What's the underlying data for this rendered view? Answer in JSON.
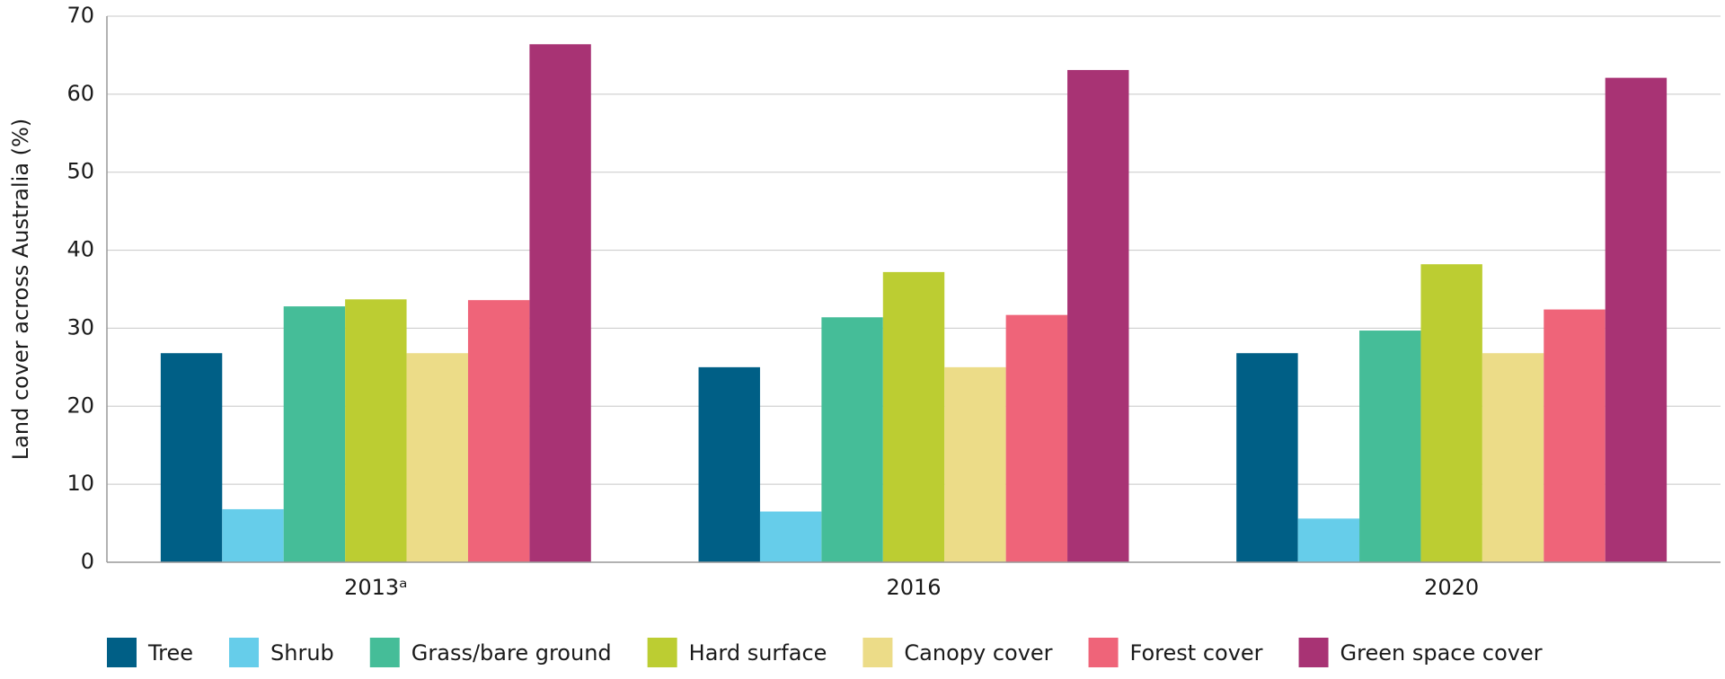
{
  "chart_data": {
    "type": "bar",
    "y_label": "Land cover across Australia (%)",
    "categories": [
      "2013ᵃ",
      "2016",
      "2020"
    ],
    "series": [
      {
        "name": "Tree",
        "color": "#005f86",
        "values": [
          26.8,
          25.0,
          26.8
        ]
      },
      {
        "name": "Shrub",
        "color": "#66cdea",
        "values": [
          6.8,
          6.5,
          5.6
        ]
      },
      {
        "name": "Grass/bare ground",
        "color": "#45bd98",
        "values": [
          32.8,
          31.4,
          29.7
        ]
      },
      {
        "name": "Hard surface",
        "color": "#bccd32",
        "values": [
          33.7,
          37.2,
          38.2
        ]
      },
      {
        "name": "Canopy cover",
        "color": "#ecdc88",
        "values": [
          26.8,
          25.0,
          26.8
        ]
      },
      {
        "name": "Forest cover",
        "color": "#ef6479",
        "values": [
          33.6,
          31.7,
          32.4
        ]
      },
      {
        "name": "Green space cover",
        "color": "#a83374",
        "values": [
          66.4,
          63.1,
          62.1
        ]
      }
    ],
    "ylim": [
      0,
      70
    ],
    "yticks": [
      0,
      10,
      20,
      30,
      40,
      50,
      60,
      70
    ],
    "grid": true
  }
}
